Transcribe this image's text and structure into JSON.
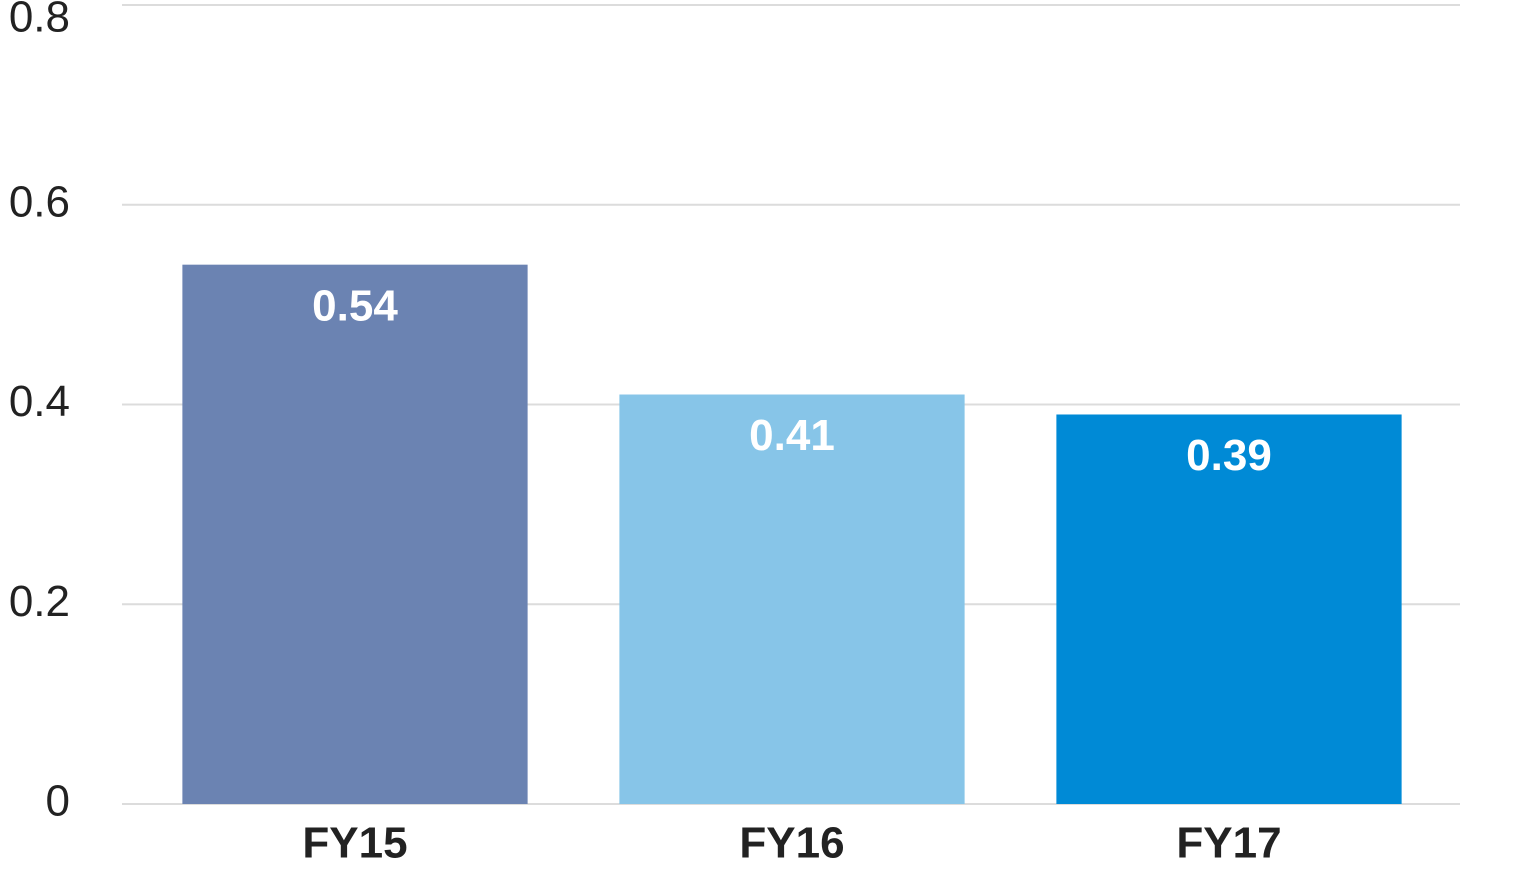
{
  "chart_data": {
    "type": "bar",
    "categories": [
      "FY15",
      "FY16",
      "FY17"
    ],
    "values": [
      0.54,
      0.41,
      0.39
    ],
    "colors": [
      "#6b83b2",
      "#87c5e8",
      "#008ad6"
    ],
    "ylim": [
      0,
      0.8
    ],
    "yticks": [
      0,
      0.2,
      0.4,
      0.6,
      0.8
    ],
    "grid": true
  }
}
